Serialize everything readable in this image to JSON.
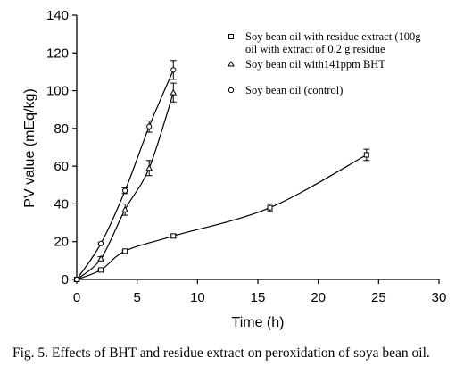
{
  "caption": "Fig. 5. Effects of BHT and residue extract on peroxidation of soya bean oil.",
  "chart_data": {
    "type": "line",
    "title": "",
    "xlabel": "Time (h)",
    "ylabel": "PV value (mEq/kg)",
    "xlim": [
      0,
      30
    ],
    "ylim": [
      0,
      140
    ],
    "xticks": [
      0,
      5,
      10,
      15,
      20,
      25,
      30
    ],
    "yticks": [
      0,
      20,
      40,
      60,
      80,
      100,
      120,
      140
    ],
    "grid": false,
    "legend_position": "top-right",
    "series": [
      {
        "name": "Soy bean oil with residue extract (100g oil with extract of 0.2 g residue",
        "marker": "square",
        "x": [
          0,
          2,
          4,
          8,
          16,
          24
        ],
        "y": [
          0,
          5,
          15,
          23,
          38,
          66
        ],
        "error": [
          0,
          0.5,
          0.5,
          1,
          2,
          3
        ]
      },
      {
        "name": "Soy bean oil with141ppm BHT",
        "marker": "triangle",
        "x": [
          0,
          2,
          4,
          6,
          8
        ],
        "y": [
          0,
          11,
          37,
          59,
          99
        ],
        "error": [
          0,
          1,
          3,
          4,
          5
        ]
      },
      {
        "name": "Soy bean oil (control)",
        "marker": "circle",
        "x": [
          0,
          2,
          4,
          6,
          8
        ],
        "y": [
          0,
          19,
          47,
          81,
          111
        ],
        "error": [
          0,
          0.5,
          1.5,
          3,
          5
        ]
      }
    ]
  }
}
